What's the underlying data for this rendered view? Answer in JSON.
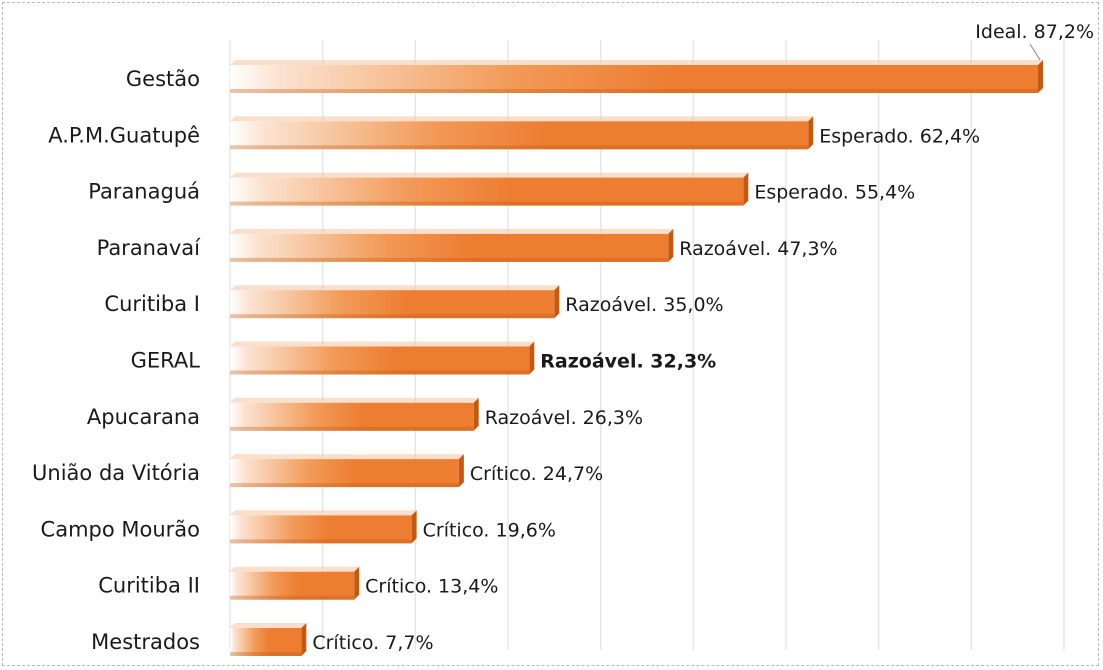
{
  "chart_data": {
    "type": "bar",
    "orientation": "horizontal",
    "categories": [
      "Gestão",
      "A.P.M.Guatupê",
      "Paranaguá",
      "Paranavaí",
      "Curitiba I",
      "GERAL",
      "Apucarana",
      "União da Vitória",
      "Campo Mourão",
      "Curitiba II",
      "Mestrados"
    ],
    "values": [
      87.2,
      62.4,
      55.4,
      47.3,
      35.0,
      32.3,
      26.3,
      24.7,
      19.6,
      13.4,
      7.7
    ],
    "data_labels": [
      "Ideal. 87,2%",
      "Esperado. 62,4%",
      "Esperado. 55,4%",
      "Razoável. 47,3%",
      "Razoável. 35,0%",
      "Razoável. 32,3%",
      "Razoável. 26,3%",
      "Crítico. 24,7%",
      "Crítico. 19,6%",
      "Crítico. 13,4%",
      "Crítico. 7,7%"
    ],
    "bold_label_index": 5,
    "xlim": [
      0,
      90
    ],
    "grid": true,
    "legend": "none",
    "bar_color": "#ED7D31",
    "bar_top_color": "#C45A12"
  }
}
